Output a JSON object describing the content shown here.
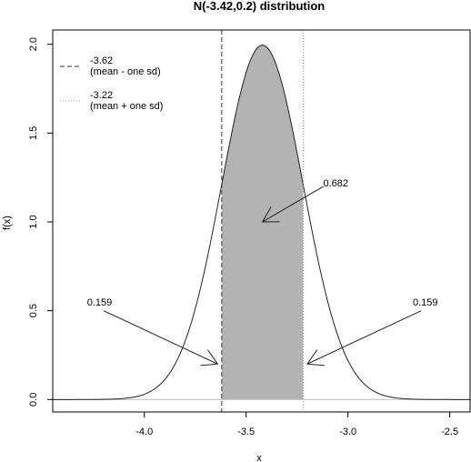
{
  "chart_data": {
    "type": "line",
    "title": "N(-3.42,0.2) distribution",
    "xlabel": "x",
    "ylabel": "f(x)",
    "distribution": {
      "mean": -3.42,
      "sd": 0.2
    },
    "xlim": [
      -4.45,
      -2.4
    ],
    "ylim": [
      -0.07,
      2.08
    ],
    "x_ticks": [
      -4.0,
      -3.5,
      -3.0,
      -2.5
    ],
    "x_tick_labels": [
      "-4.0",
      "-3.5",
      "-3.0",
      "-2.5"
    ],
    "y_ticks": [
      0.0,
      0.5,
      1.0,
      1.5,
      2.0
    ],
    "y_tick_labels": [
      "0.0",
      "0.5",
      "1.0",
      "1.5",
      "2.0"
    ],
    "grid": false,
    "shaded_region": {
      "from": -3.62,
      "to": -3.22,
      "color": "#b3b3b3"
    },
    "vertical_lines": [
      {
        "x": -3.62,
        "style": "dashed",
        "color": "#333333"
      },
      {
        "x": -3.22,
        "style": "dotted",
        "color": "#999999"
      }
    ],
    "legend": {
      "position": "top-left",
      "entries": [
        {
          "line1": "-3.62",
          "line2": "(mean - one sd)",
          "style": "dashed",
          "color": "#333333"
        },
        {
          "line1": "-3.22",
          "line2": "(mean + one sd)",
          "style": "dotted",
          "color": "#999999"
        }
      ]
    },
    "annotations": [
      {
        "text": "0.682",
        "text_x": -3.06,
        "text_y": 1.22,
        "arrow_from": [
          -3.12,
          1.2
        ],
        "arrow_to": [
          -3.42,
          1.0
        ]
      },
      {
        "text": "0.159",
        "text_x": -4.22,
        "text_y": 0.55,
        "arrow_from": [
          -4.2,
          0.5
        ],
        "arrow_to": [
          -3.64,
          0.2
        ]
      },
      {
        "text": "0.159",
        "text_x": -2.62,
        "text_y": 0.55,
        "arrow_from": [
          -2.64,
          0.5
        ],
        "arrow_to": [
          -3.2,
          0.2
        ]
      }
    ]
  }
}
